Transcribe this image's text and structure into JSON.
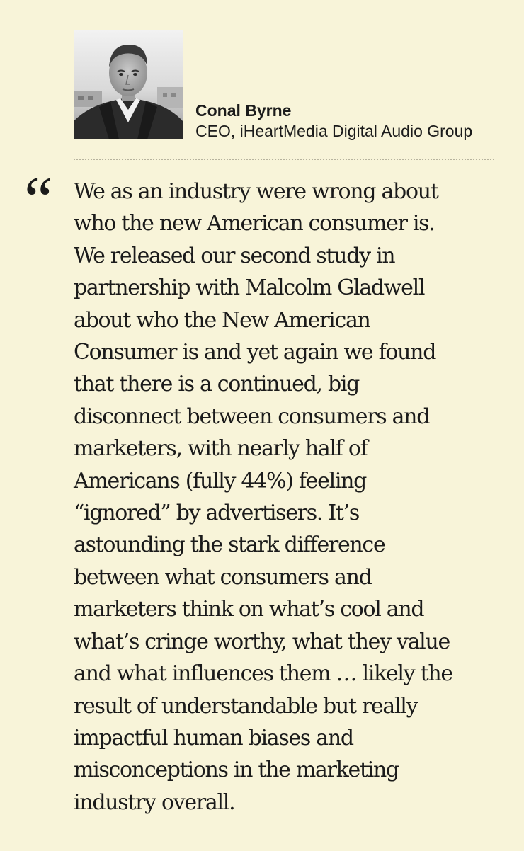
{
  "author": {
    "name": "Conal Byrne",
    "title": "CEO, iHeartMedia Digital Audio Group",
    "photo": "portrait-photo"
  },
  "quote": {
    "mark": "“",
    "lines": [
      "We as an industry were wrong about",
      "who the new American consumer is.",
      "We released our second study in",
      "partnership with Malcolm Gladwell",
      "about who the New American",
      "Consumer is and yet again we found",
      "that there is a continued, big",
      "disconnect between consumers and",
      "marketers, with nearly half of",
      "Americans (fully 44%) feeling",
      "“ignored” by advertisers.  It’s",
      "astounding the stark difference",
      "between what consumers and",
      "marketers think on what’s cool and",
      "what’s cringe worthy, what they value",
      "and what influences them … likely the",
      "result of understandable but really",
      "impactful human biases and",
      "misconceptions in the marketing",
      "industry overall."
    ]
  },
  "colors": {
    "background": "#f8f4d9",
    "text": "#1b1b1b",
    "divider": "#b7b39e"
  }
}
